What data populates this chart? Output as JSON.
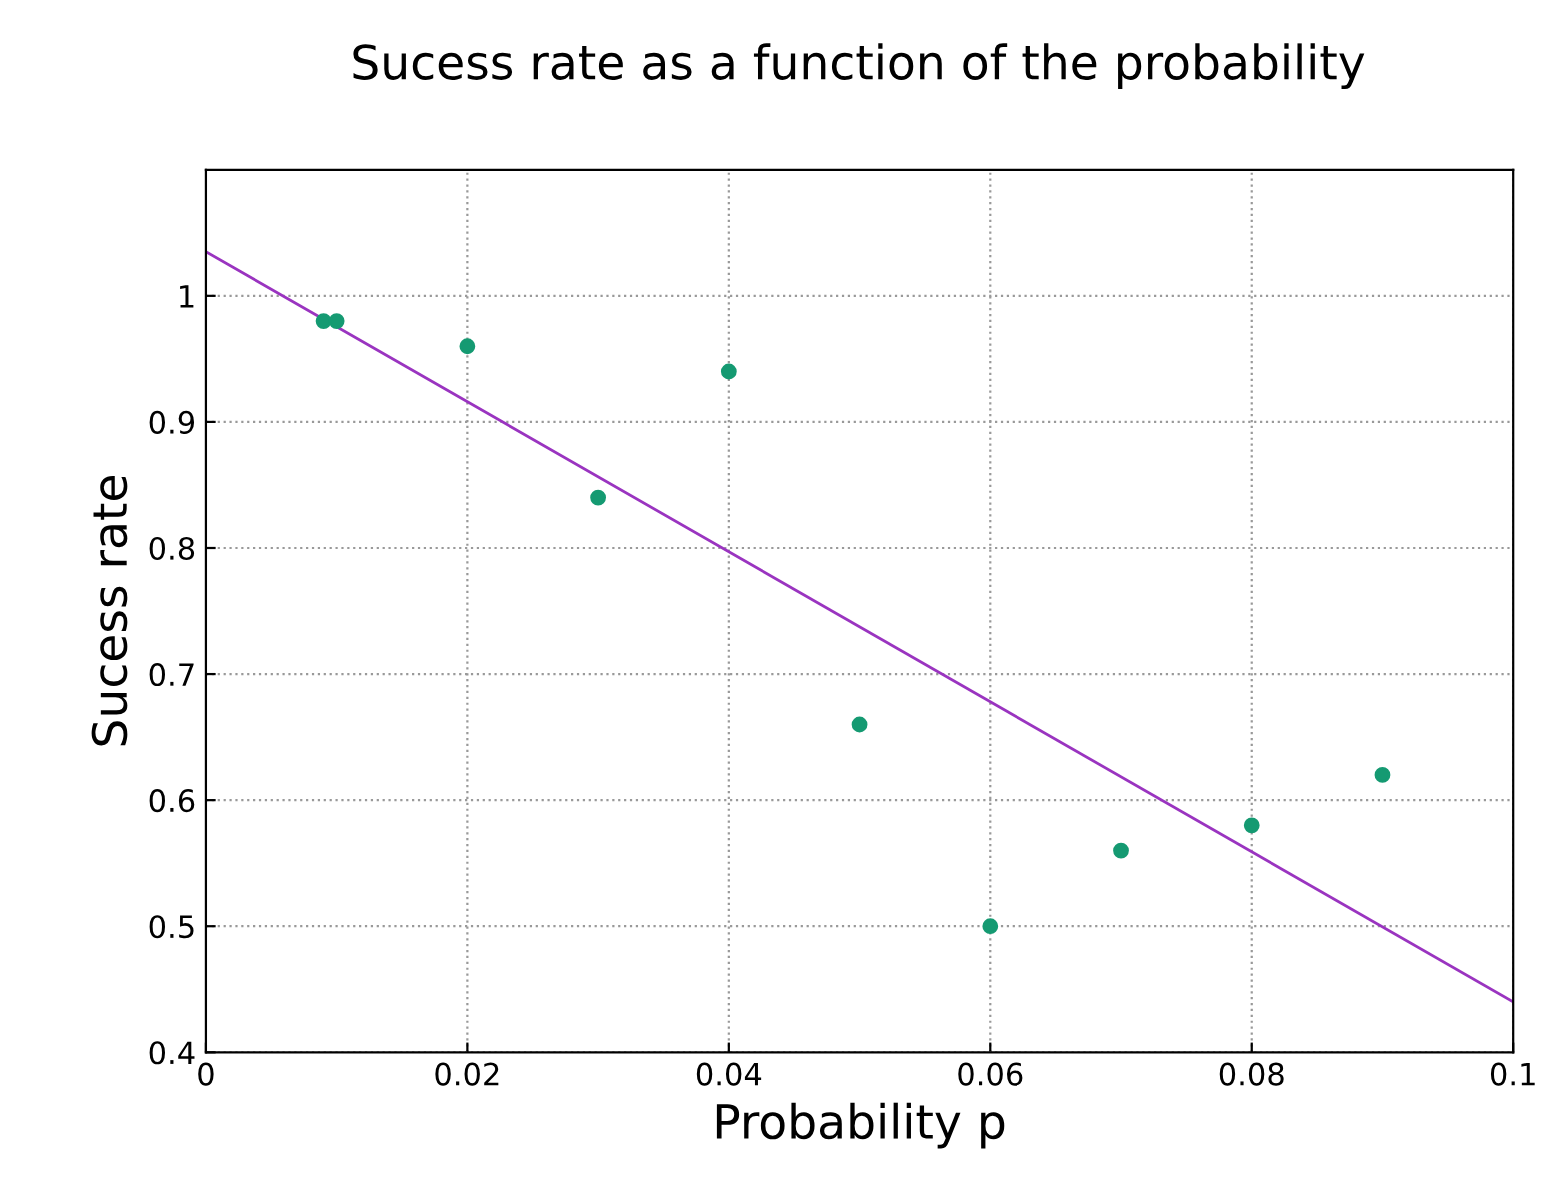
{
  "chart_data": {
    "type": "scatter",
    "title": "Sucess rate as a function of the probability",
    "xlabel": "Probability p",
    "ylabel": "Sucess rate",
    "xlim": [
      0,
      0.1
    ],
    "xticks": [
      0,
      0.02,
      0.04,
      0.06,
      0.08,
      0.1
    ],
    "ylim": [
      0.4,
      1.1
    ],
    "yticks": [
      0.4,
      0.5,
      0.6,
      0.7,
      0.8,
      0.9,
      1
    ],
    "grid": true,
    "series": [
      {
        "marker": "circle",
        "color": "#159a72",
        "x": [
          0.009,
          0.01,
          0.02,
          0.03,
          0.04,
          0.05,
          0.06,
          0.07,
          0.08,
          0.09
        ],
        "values": [
          0.98,
          0.98,
          0.96,
          0.84,
          0.94,
          0.66,
          0.5,
          0.56,
          0.58,
          0.62
        ]
      },
      {
        "type": "line",
        "marker": "none",
        "color": "#9a34c0",
        "x": [
          0,
          0.1
        ],
        "values": [
          1.035,
          0.44
        ]
      }
    ]
  }
}
